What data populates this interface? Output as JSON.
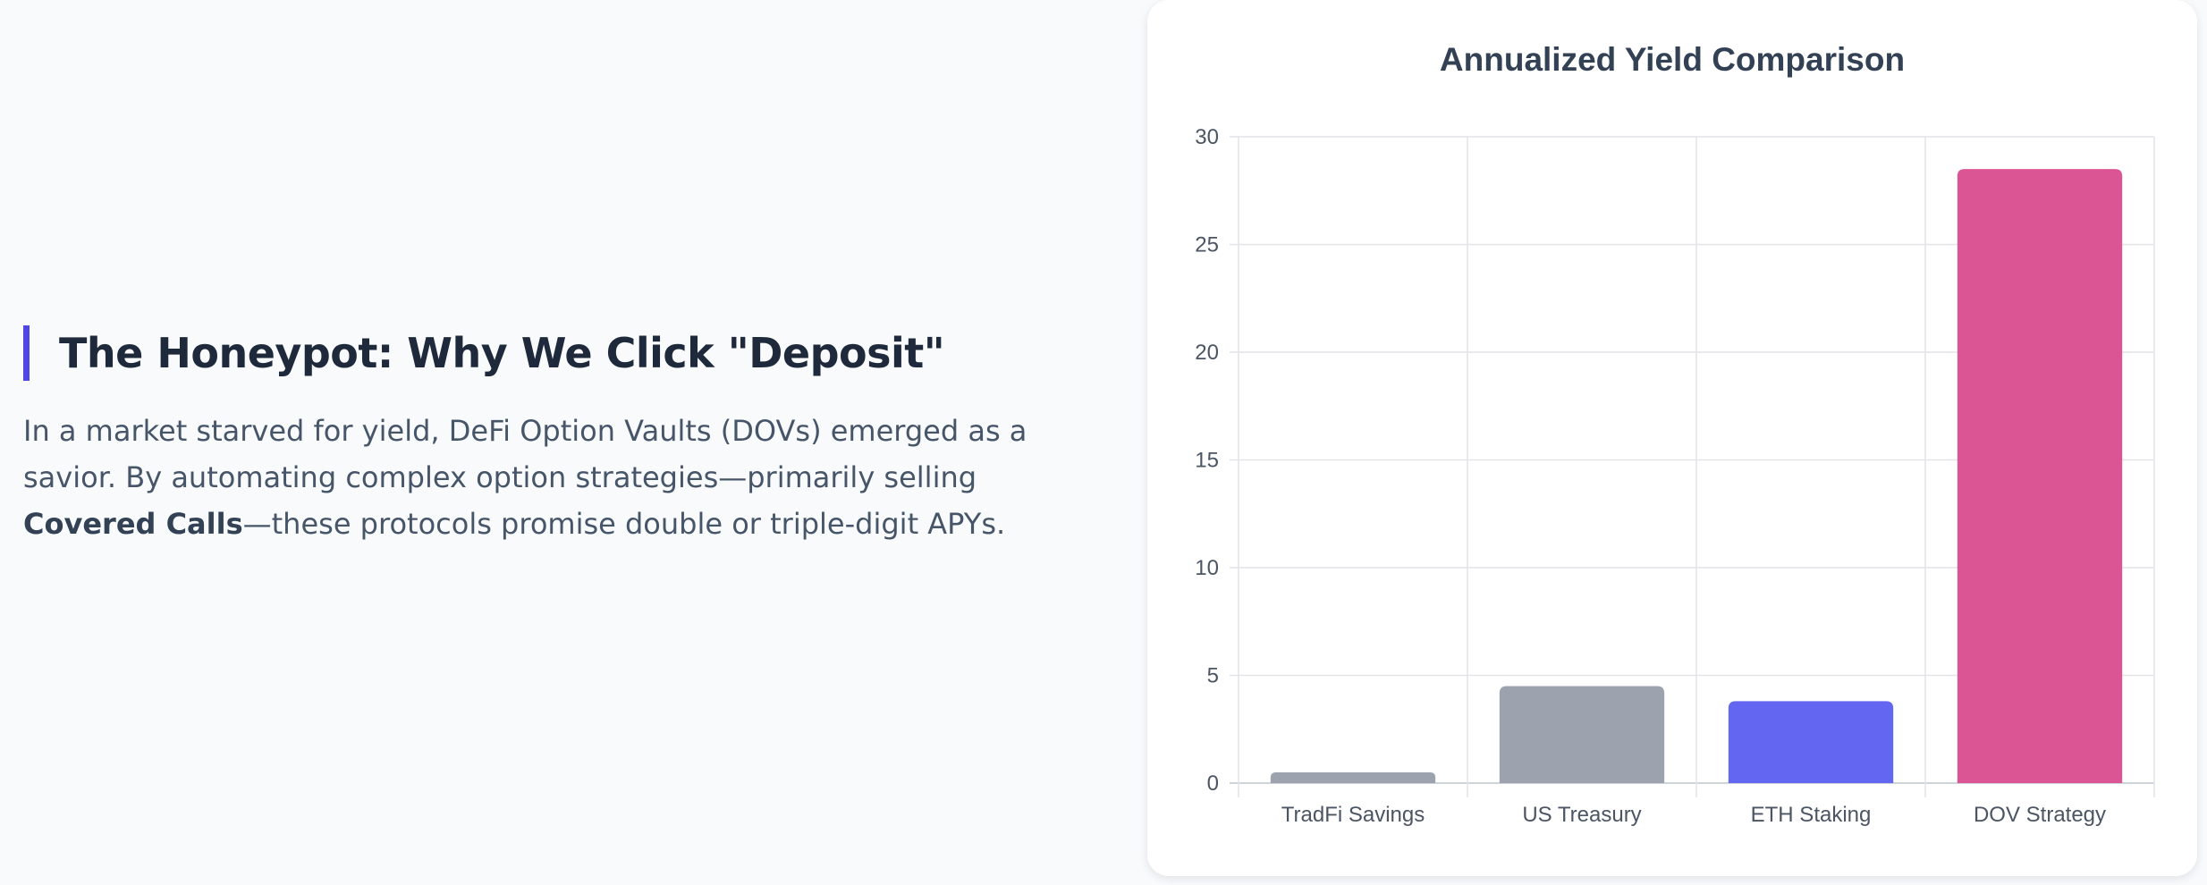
{
  "section": {
    "heading": "The Honeypot: Why We Click \"Deposit\"",
    "intro_before": "In a market starved for yield, DeFi Option Vaults (DOVs) emerged as a savior. By automating complex option strategies—primarily selling ",
    "intro_bold": "Covered Calls",
    "intro_after": "—these protocols promise double or triple-digit APYs."
  },
  "colors": {
    "accent": "#4f46e5",
    "gray_bar": "#9ca3af",
    "indigo_bar": "#6366f1",
    "pink_bar": "#db5594"
  },
  "chart_data": {
    "type": "bar",
    "title": "Annualized Yield Comparison",
    "categories": [
      "TradFi Savings",
      "US Treasury",
      "ETH Staking",
      "DOV Strategy"
    ],
    "values": [
      0.5,
      4.5,
      3.8,
      28.5
    ],
    "bar_colors": [
      "#9ca3af",
      "#9ca3af",
      "#6366f1",
      "#db5594"
    ],
    "ylim": [
      0,
      30
    ],
    "yticks": [
      0,
      5,
      10,
      15,
      20,
      25,
      30
    ],
    "xlabel": "",
    "ylabel": "",
    "grid": true,
    "legend": "none"
  }
}
